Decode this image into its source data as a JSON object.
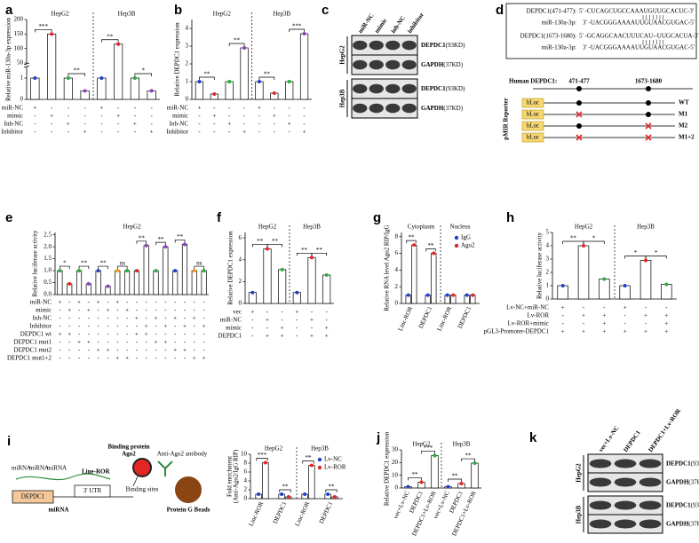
{
  "panel_labels": [
    "a",
    "b",
    "c",
    "d",
    "e",
    "f",
    "g",
    "h",
    "i",
    "j",
    "k"
  ],
  "chart_data": [
    {
      "type": "bar",
      "y_label": "Relative miR-130a-3p expression",
      "groups": [
        "HepG2",
        "Hep3B"
      ],
      "ylim": [
        0,
        200
      ],
      "ybreak": [
        1.5,
        50
      ],
      "yticks": [
        0,
        1,
        50,
        100,
        150,
        200
      ],
      "series": [
        {
          "values": [
            1,
            150,
            1,
            0.4,
            1,
            115,
            1,
            0.4
          ],
          "colors": [
            "#1f3fd0",
            "#e32626",
            "#27b03a",
            "#8e3fbf",
            "#1f3fd0",
            "#e32626",
            "#27b03a",
            "#8e3fbf"
          ]
        }
      ],
      "significance": [
        {
          "label": "***",
          "between": [
            0,
            1
          ]
        },
        {
          "label": "**",
          "between": [
            2,
            3
          ]
        },
        {
          "label": "**",
          "between": [
            4,
            5
          ]
        },
        {
          "label": "*",
          "between": [
            6,
            7
          ]
        }
      ],
      "conditions": [
        {
          "label": "miR-NC",
          "marks": [
            "+",
            "-",
            "-",
            "-",
            "+",
            "-",
            "-",
            "-"
          ]
        },
        {
          "label": "mimic",
          "marks": [
            "-",
            "+",
            "-",
            "-",
            "-",
            "+",
            "-",
            "-"
          ]
        },
        {
          "label": "Inh-NC",
          "marks": [
            "-",
            "-",
            "+",
            "-",
            "-",
            "-",
            "+",
            "-"
          ]
        },
        {
          "label": "Inhibitor",
          "marks": [
            "-",
            "-",
            "-",
            "+",
            "-",
            "-",
            "-",
            "+"
          ]
        }
      ]
    },
    {
      "type": "bar",
      "y_label": "Relative DEPDC1 expression",
      "groups": [
        "HepG2",
        "Hep3B"
      ],
      "ylim": [
        0,
        4.5
      ],
      "yticks": [
        0,
        1,
        2,
        3,
        4
      ],
      "series": [
        {
          "values": [
            1,
            0.3,
            1,
            2.9,
            1,
            0.35,
            1,
            3.7
          ],
          "colors": [
            "#1f3fd0",
            "#e32626",
            "#27b03a",
            "#8e3fbf",
            "#1f3fd0",
            "#e32626",
            "#27b03a",
            "#8e3fbf"
          ]
        }
      ],
      "significance": [
        {
          "label": "**",
          "between": [
            0,
            1
          ]
        },
        {
          "label": "**",
          "between": [
            2,
            3
          ]
        },
        {
          "label": "**",
          "between": [
            4,
            5
          ]
        },
        {
          "label": "***",
          "between": [
            6,
            7
          ]
        }
      ],
      "conditions": [
        {
          "label": "miR-NC",
          "marks": [
            "+",
            "-",
            "-",
            "-",
            "+",
            "-",
            "-",
            "-"
          ]
        },
        {
          "label": "mimic",
          "marks": [
            "-",
            "+",
            "-",
            "-",
            "-",
            "+",
            "-",
            "-"
          ]
        },
        {
          "label": "Inh-NC",
          "marks": [
            "-",
            "-",
            "+",
            "-",
            "-",
            "-",
            "+",
            "-"
          ]
        },
        {
          "label": "Inhibitor",
          "marks": [
            "-",
            "-",
            "-",
            "+",
            "-",
            "-",
            "-",
            "+"
          ]
        }
      ]
    },
    {
      "type": "bar",
      "y_label": "Relative luciferase activity",
      "groups": [
        "HepG2"
      ],
      "ylim": [
        0,
        2.6
      ],
      "yticks": [
        {
          "value": 0,
          "label": "0.0"
        },
        0.5,
        {
          "value": 1,
          "label": "1.0"
        },
        1.5,
        {
          "value": 2,
          "label": "2.0"
        },
        2.5
      ],
      "series": [
        {
          "values": [
            1,
            0.45,
            1,
            0.45,
            1,
            0.35,
            1,
            1,
            1,
            2.05,
            1,
            2.0,
            1,
            2.1,
            1,
            1
          ],
          "colors": [
            "#27b03a",
            "#e32626",
            "#27b03a",
            "#8e3fbf",
            "#1f3fd0",
            "#8e3fbf",
            "#f39c12",
            "#27b03a",
            "#e32626",
            "#8e3fbf",
            "#27b03a",
            "#8e3fbf",
            "#1f3fd0",
            "#8e3fbf",
            "#f39c12",
            "#27b03a"
          ]
        }
      ],
      "significance": [
        {
          "label": "*",
          "between": [
            0,
            1
          ]
        },
        {
          "label": "**",
          "between": [
            2,
            3
          ]
        },
        {
          "label": "**",
          "between": [
            4,
            5
          ]
        },
        {
          "label": "ns",
          "between": [
            6,
            7
          ]
        },
        {
          "label": "**",
          "between": [
            8,
            9
          ]
        },
        {
          "label": "**",
          "between": [
            10,
            11
          ]
        },
        {
          "label": "**",
          "between": [
            12,
            13
          ]
        },
        {
          "label": "ns",
          "between": [
            14,
            15
          ]
        }
      ],
      "conditions": [
        {
          "label": "miR-NC",
          "marks": [
            "+",
            "-",
            "+",
            "-",
            "+",
            "-",
            "+",
            "-",
            "-",
            "-",
            "-",
            "-",
            "-",
            "-",
            "-",
            "-"
          ]
        },
        {
          "label": "mimic",
          "marks": [
            "-",
            "+",
            "-",
            "+",
            "-",
            "+",
            "-",
            "+",
            "-",
            "-",
            "-",
            "-",
            "-",
            "-",
            "-",
            "-"
          ]
        },
        {
          "label": "Inh-NC",
          "marks": [
            "-",
            "-",
            "-",
            "-",
            "-",
            "-",
            "-",
            "-",
            "+",
            "-",
            "+",
            "-",
            "+",
            "-",
            "+",
            "-"
          ]
        },
        {
          "label": "Inhibitor",
          "marks": [
            "-",
            "-",
            "-",
            "-",
            "-",
            "-",
            "-",
            "-",
            "-",
            "+",
            "-",
            "+",
            "-",
            "+",
            "-",
            "+"
          ]
        },
        {
          "label": "DEPDC1 wt",
          "marks": [
            "+",
            "+",
            "-",
            "-",
            "-",
            "-",
            "-",
            "-",
            "+",
            "+",
            "-",
            "-",
            "-",
            "-",
            "-",
            "-"
          ]
        },
        {
          "label": "DEPDC1 mut1",
          "marks": [
            "-",
            "-",
            "+",
            "+",
            "-",
            "-",
            "-",
            "-",
            "-",
            "-",
            "+",
            "+",
            "-",
            "-",
            "-",
            "-"
          ]
        },
        {
          "label": "DEPDC1 mut2",
          "marks": [
            "-",
            "-",
            "-",
            "-",
            "+",
            "+",
            "-",
            "-",
            "-",
            "-",
            "-",
            "-",
            "+",
            "+",
            "-",
            "-"
          ]
        },
        {
          "label": "DEPDC1 mut1+2",
          "marks": [
            "-",
            "-",
            "-",
            "-",
            "-",
            "-",
            "+",
            "+",
            "-",
            "-",
            "-",
            "-",
            "-",
            "-",
            "+",
            "+"
          ]
        }
      ]
    },
    {
      "type": "bar",
      "y_label": "Relative DEPDC1 expression",
      "groups": [
        "HepG2",
        "Hep3B"
      ],
      "ylim": [
        0,
        6.5
      ],
      "yticks": [
        0,
        2,
        4,
        6
      ],
      "series": [
        {
          "values": [
            1,
            5,
            3.1,
            1,
            4.2,
            2.6
          ],
          "colors": [
            "#1f3fd0",
            "#e32626",
            "#27b03a",
            "#1f3fd0",
            "#e32626",
            "#27b03a"
          ]
        }
      ],
      "significance": [
        {
          "label": "**",
          "between": [
            0,
            1
          ]
        },
        {
          "label": "**",
          "between": [
            1,
            2
          ]
        },
        {
          "label": "**",
          "between": [
            3,
            4
          ]
        },
        {
          "label": "**",
          "between": [
            4,
            5
          ]
        }
      ],
      "conditions": [
        {
          "label": "vec",
          "marks": [
            "+",
            "-",
            "-",
            "+",
            "-",
            "-"
          ]
        },
        {
          "label": "miR-NC",
          "marks": [
            "-",
            "+",
            "-",
            "-",
            "+",
            "-"
          ]
        },
        {
          "label": "mimic",
          "marks": [
            "-",
            "-",
            "+",
            "-",
            "-",
            "+"
          ]
        },
        {
          "label": "DEPDC1",
          "marks": [
            "-",
            "+",
            "+",
            "-",
            "+",
            "+"
          ]
        }
      ]
    },
    {
      "type": "bar",
      "y_label": "Relative RNA level Ago2 RIP/IgG",
      "groups": [
        "Cytoplasm",
        "Nucleus"
      ],
      "ylim": [
        0,
        8.5
      ],
      "yticks": [
        0,
        2,
        4,
        6,
        8
      ],
      "categories": [
        "Linc-ROR",
        "DEPDC1",
        "Linc-ROR",
        "DEPDC1"
      ],
      "legend": "top-right",
      "series": [
        {
          "name": "IgG",
          "color": "#1f3fd0",
          "values": [
            1,
            1,
            1,
            1
          ]
        },
        {
          "name": "Ago2",
          "color": "#e32626",
          "values": [
            7,
            6,
            1,
            1
          ]
        }
      ],
      "significance": [
        {
          "label": "**",
          "category": 0
        },
        {
          "label": "**",
          "category": 1
        }
      ]
    },
    {
      "type": "bar",
      "y_label": "Relative luciferase activity",
      "groups": [
        "HepG2",
        "Hep3B"
      ],
      "ylim": [
        0,
        5
      ],
      "yticks": [
        0,
        1,
        2,
        3,
        4,
        5
      ],
      "series": [
        {
          "values": [
            1,
            4,
            1.5,
            1,
            2.9,
            1.1
          ],
          "colors": [
            "#1f3fd0",
            "#e32626",
            "#27b03a",
            "#1f3fd0",
            "#e32626",
            "#27b03a"
          ]
        }
      ],
      "significance": [
        {
          "label": "**",
          "between": [
            0,
            1
          ]
        },
        {
          "label": "*",
          "between": [
            1,
            2
          ]
        },
        {
          "label": "*",
          "between": [
            3,
            4
          ]
        },
        {
          "label": "*",
          "between": [
            4,
            5
          ]
        }
      ],
      "conditions": [
        {
          "label": "Lv-NC+miR-NC",
          "marks": [
            "+",
            "-",
            "-",
            "+",
            "-",
            "-"
          ]
        },
        {
          "label": "Lv-ROR",
          "marks": [
            "-",
            "+",
            "+",
            "-",
            "+",
            "+"
          ]
        },
        {
          "label": "Lv-ROR+mimic",
          "marks": [
            "-",
            "-",
            "+",
            "-",
            "-",
            "+"
          ]
        },
        {
          "label": "pGL3-Promoter-DEPDC1",
          "marks": [
            "+",
            "+",
            "+",
            "+",
            "+",
            "+"
          ]
        }
      ]
    },
    {
      "type": "bar",
      "y_label": [
        "Fold enrichment",
        "(Anti-Ago2/IgG RIP)"
      ],
      "groups": [
        "HepG2",
        "Hep3B"
      ],
      "ylim": [
        0,
        10
      ],
      "yticks": [
        0,
        2,
        4,
        6,
        8,
        10
      ],
      "categories": [
        "Linc-ROR",
        "DEPDC1",
        "Linc-ROR",
        "DEPDC1"
      ],
      "legend": "top-right",
      "series": [
        {
          "name": "Lv-NC",
          "color": "#1f3fd0",
          "values": [
            1,
            1,
            1,
            1
          ]
        },
        {
          "name": "Lv-ROR",
          "color": "#e32626",
          "values": [
            8.1,
            0.4,
            7.5,
            0.4
          ]
        }
      ],
      "significance": [
        {
          "label": "***",
          "category": 0
        },
        {
          "label": "**",
          "category": 1
        },
        {
          "label": "**",
          "category": 2
        },
        {
          "label": "**",
          "category": 3
        }
      ]
    },
    {
      "type": "bar",
      "y_label": "Relative DEPDC1 expression",
      "groups": [
        "HepG2",
        "Hep3B"
      ],
      "ylim": [
        0,
        30
      ],
      "yticks": [
        0,
        10,
        20,
        30
      ],
      "categories": [
        "vec+Lv-NC",
        "DEPDC1",
        "DEPDC1+Lv-ROR",
        "vec+Lv-NC",
        "DEPDC1",
        "DEPDC1+Lv-ROR"
      ],
      "series": [
        {
          "values": [
            1,
            4.5,
            25.5,
            1,
            3.5,
            19.5
          ],
          "colors": [
            "#1f3fd0",
            "#e32626",
            "#27b03a",
            "#1f3fd0",
            "#e32626",
            "#27b03a"
          ]
        }
      ],
      "significance": [
        {
          "label": "**",
          "between": [
            0,
            1
          ]
        },
        {
          "label": "***",
          "between": [
            1,
            2
          ]
        },
        {
          "label": "**",
          "between": [
            3,
            4
          ]
        },
        {
          "label": "**",
          "between": [
            4,
            5
          ]
        }
      ]
    }
  ],
  "blots": [
    {
      "columns": [
        "miR-NC",
        "mimic",
        "inh-NC",
        "inhibitor"
      ],
      "sections": [
        {
          "cell": "HepG2",
          "rows": [
            {
              "protein": "DEPDC1",
              "size": "(93KD)"
            },
            {
              "protein": "GAPDH",
              "size": "(37KD)"
            }
          ]
        },
        {
          "cell": "Hep3B",
          "rows": [
            {
              "protein": "DEPDC1",
              "size": "(93KD)"
            },
            {
              "protein": "GAPDH",
              "size": "(37KD)"
            }
          ]
        }
      ]
    },
    {
      "columns": [
        "vec+Lv-NC",
        "DEPDC1",
        "DEPDC1+Lv-ROR"
      ],
      "sections": [
        {
          "cell": "HepG2",
          "rows": [
            {
              "protein": "DEPDC1",
              "size": "(93KD)"
            },
            {
              "protein": "GAPDH",
              "size": "(37KD)"
            }
          ]
        },
        {
          "cell": "Hep3B",
          "rows": [
            {
              "protein": "DEPDC1",
              "size": "(93KD)"
            },
            {
              "protein": "GAPDH",
              "size": "(37KD)"
            }
          ]
        }
      ]
    }
  ],
  "binding_sites": {
    "alignments": [
      {
        "site": "DEPDC1(471-477):",
        "target": "5' -CUCAGCUGCCAAAUGUUGCACUC-3'",
        "mirna_label": "miR-130a-3p:",
        "mirna": "3' -UACGGGAAAAUUGUAACGUGAC-5'"
      },
      {
        "site": "DEPDC1(1673-1680):",
        "target": "5' -GCAGGCAACUUUCAU--UUGCACUA-3'",
        "mirna_label": "miR-130a-3p:",
        "mirna": "3' -UACGGGAAAAUUGUAACGUGAC-5'"
      }
    ],
    "gene_label": "Human DEPDC1:",
    "sites": [
      "471-477",
      "1673-1680"
    ],
    "reporter_label": "pMIR Reporter",
    "constructs": [
      {
        "luc": "hLuc",
        "name": "WT",
        "mutated": [
          false,
          false
        ]
      },
      {
        "luc": "hLuc",
        "name": "M1",
        "mutated": [
          true,
          false
        ]
      },
      {
        "luc": "hLuc",
        "name": "M2",
        "mutated": [
          false,
          true
        ]
      },
      {
        "luc": "hLuc",
        "name": "M1+2",
        "mutated": [
          true,
          true
        ]
      }
    ]
  },
  "rip_schematic": {
    "ago2_label": [
      "Binding protein",
      "Ago2"
    ],
    "antibody_label": "Anti-Ago2 antibody",
    "lncrna_label": "Line-ROR",
    "gene_label": "DEPDC1",
    "utr_label": "3' UTR",
    "mirna_label": "miRNA",
    "mirna_tags": [
      "miRNA",
      "miRNA",
      "miRNA"
    ],
    "sites_label": "Binding sites",
    "beads_label": "Protein G Beads"
  }
}
